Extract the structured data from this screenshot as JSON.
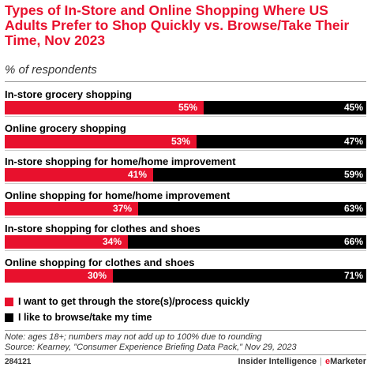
{
  "title": "Types of In-Store and Online Shopping Where US Adults Prefer to Shop Quickly vs. Browse/Take Their Time, Nov 2023",
  "subtitle": "% of respondents",
  "colors": {
    "series1": "#e8112d",
    "series2": "#000000"
  },
  "chart_data": {
    "type": "bar",
    "orientation": "horizontal",
    "stacked": true,
    "categories": [
      "In-store grocery shopping",
      "Online grocery shopping",
      "In-store shopping for home/home improvement",
      "Online shopping for home/home improvement",
      "In-store shopping for clothes and shoes",
      "Online shopping for clothes and shoes"
    ],
    "series": [
      {
        "name": "I want to get through the store(s)/process quickly",
        "values": [
          55,
          53,
          41,
          37,
          34,
          30
        ],
        "labels": [
          "55%",
          "53%",
          "41%",
          "37%",
          "34%",
          "30%"
        ]
      },
      {
        "name": "I like to browse/take my time",
        "values": [
          45,
          47,
          59,
          63,
          66,
          71
        ],
        "labels": [
          "45%",
          "47%",
          "59%",
          "63%",
          "66%",
          "71%"
        ]
      }
    ],
    "legend_position": "bottom"
  },
  "notes": {
    "note": "Note: ages 18+; numbers may not add up to 100% due to rounding",
    "source": "Source: Kearney, \"Consumer Experience Briefing Data Pack,\" Nov 29, 2023"
  },
  "footer": {
    "id": "284121",
    "brand1": "Insider Intelligence",
    "separator": "|",
    "brand2_e": "e",
    "brand2": "Marketer"
  }
}
